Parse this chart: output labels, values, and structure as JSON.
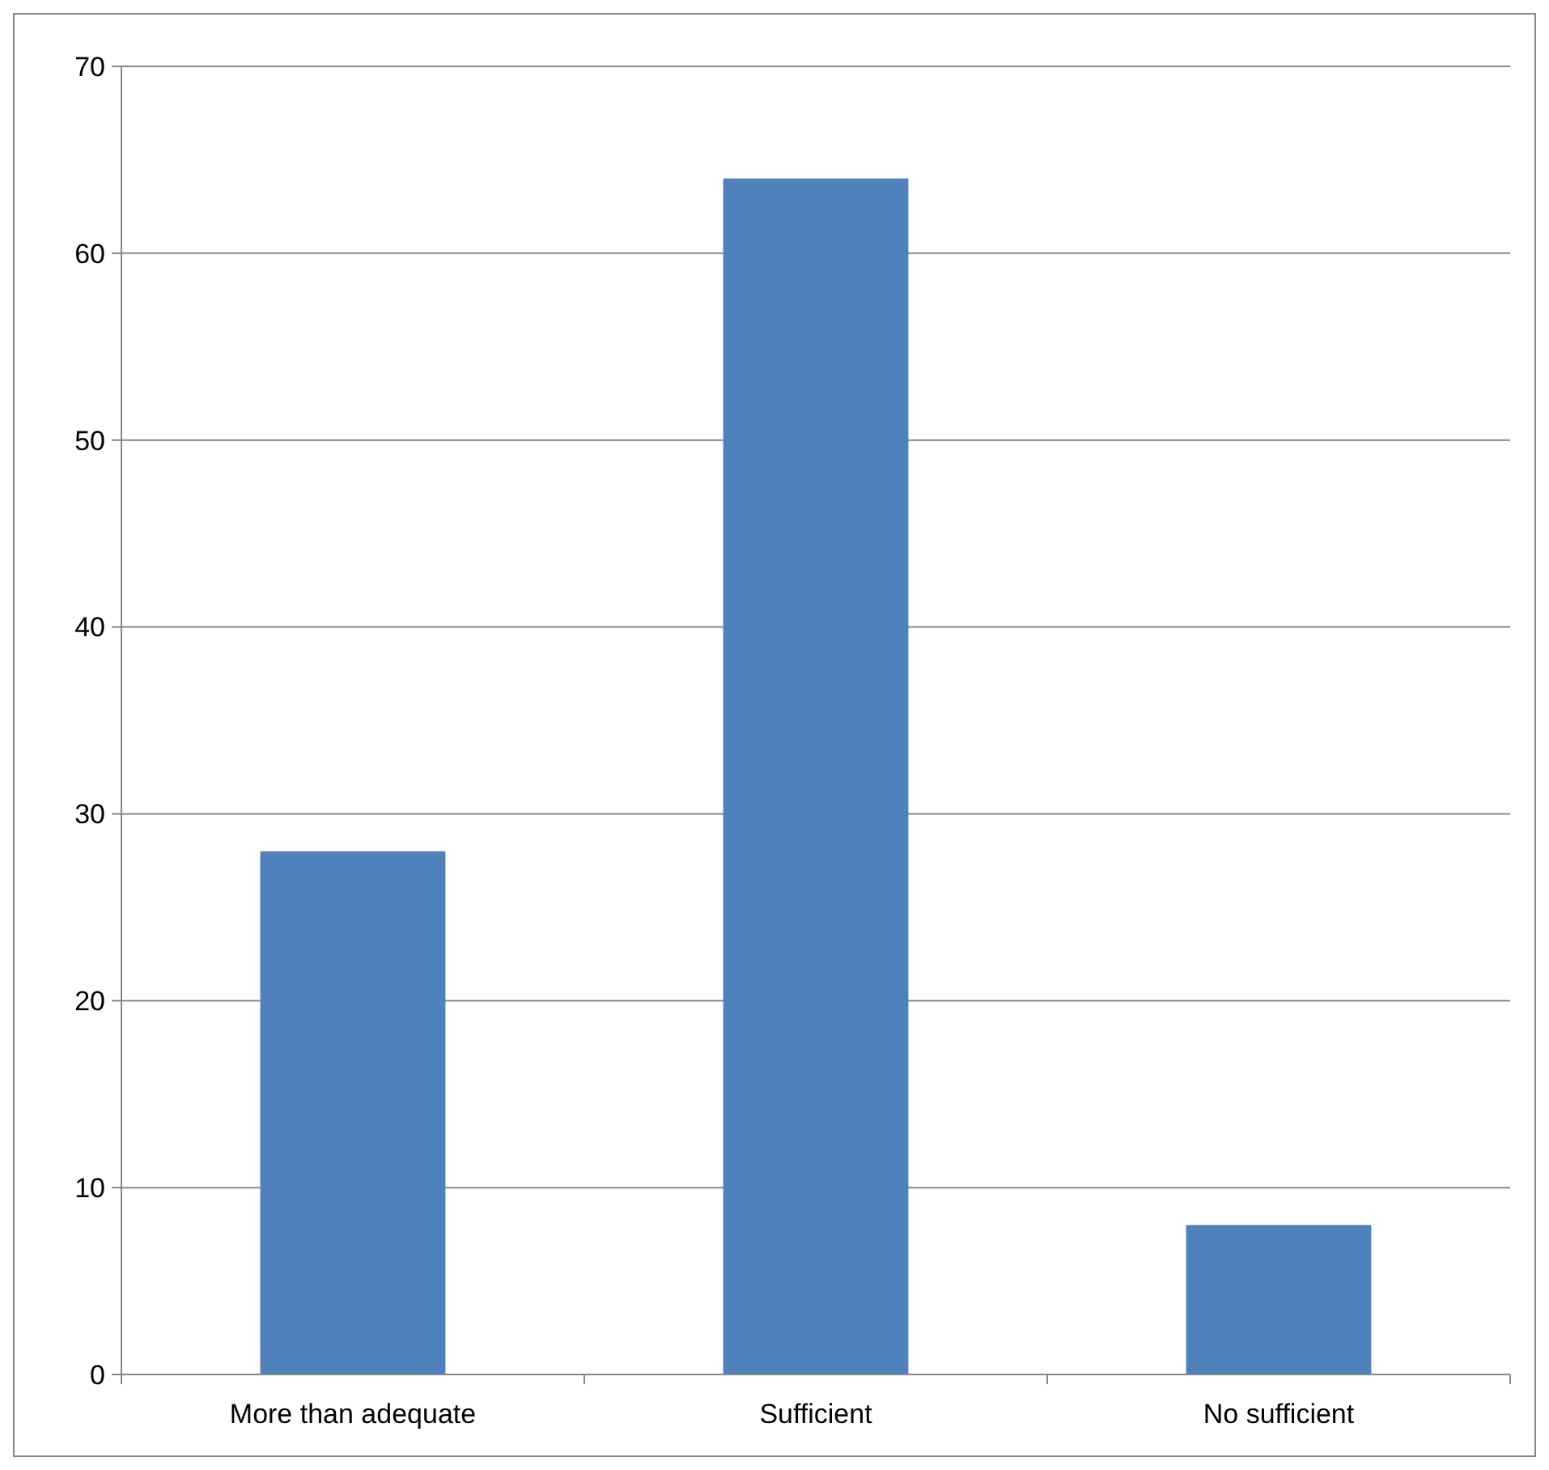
{
  "chart_data": {
    "type": "bar",
    "categories": [
      "More than adequate",
      "Sufficient",
      "No sufficient"
    ],
    "values": [
      28,
      64,
      8
    ],
    "color": "#4f81bd",
    "ylim": [
      0,
      70
    ],
    "yticks": [
      0,
      10,
      20,
      30,
      40,
      50,
      60,
      70
    ],
    "grid": "y"
  }
}
